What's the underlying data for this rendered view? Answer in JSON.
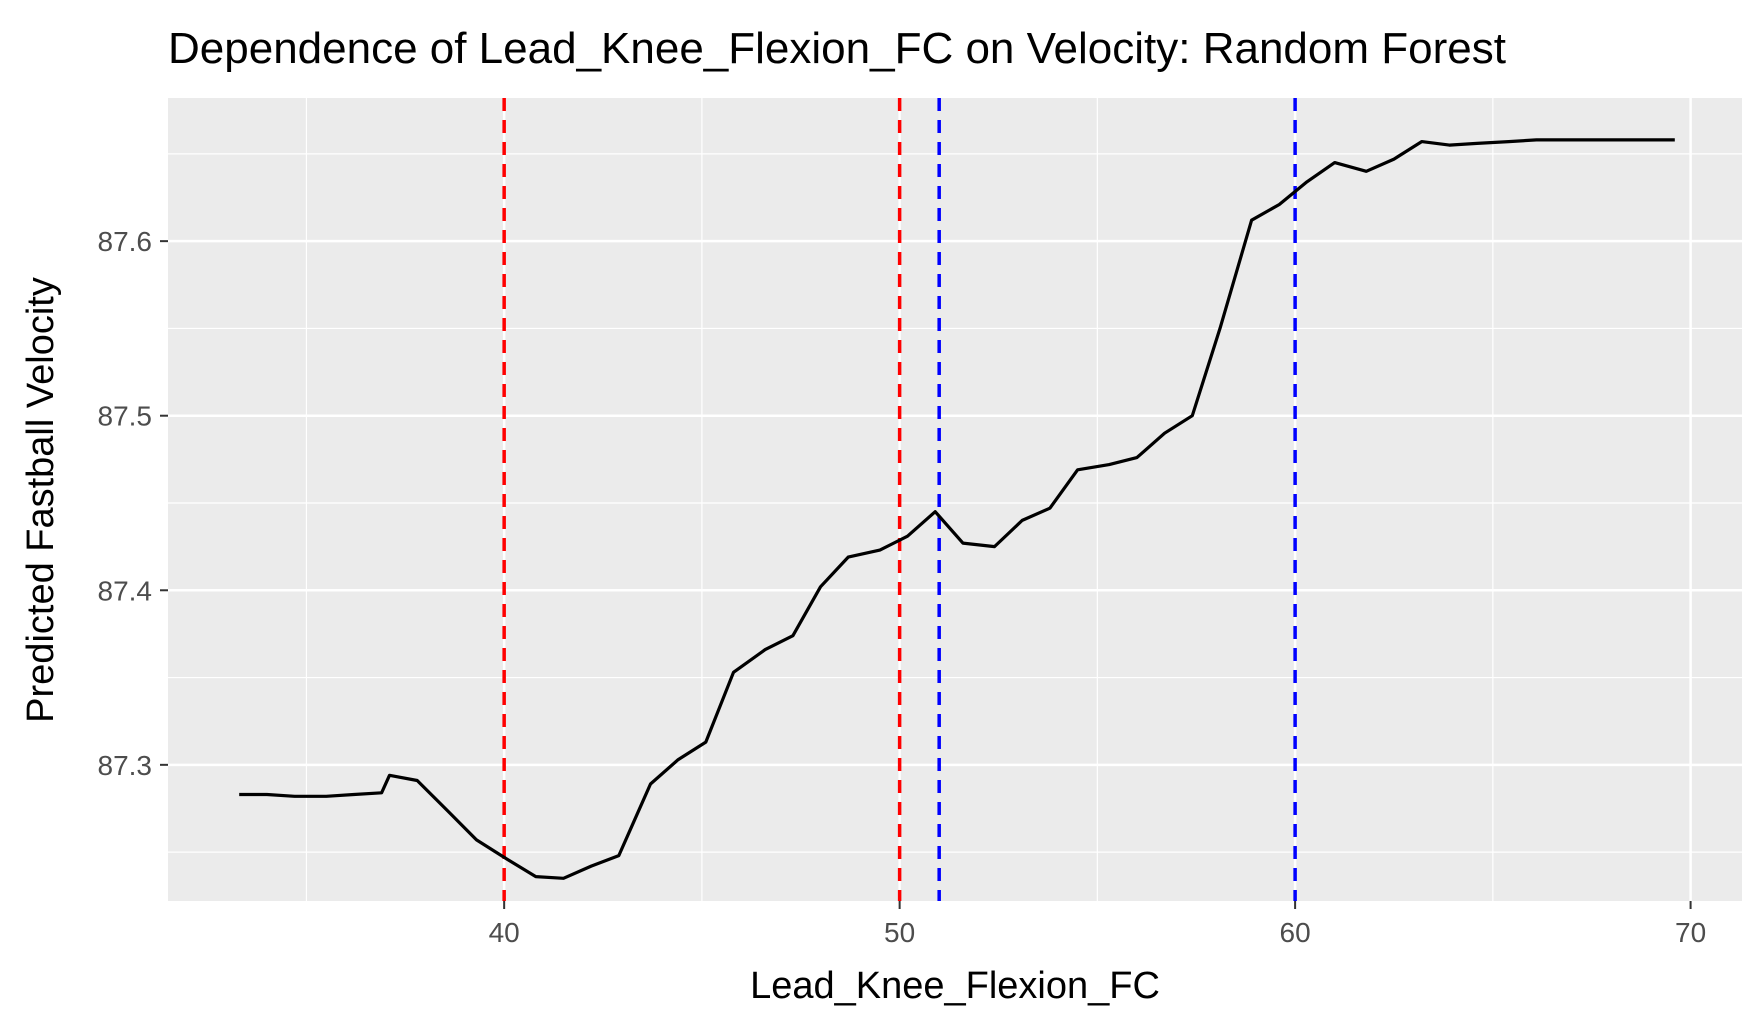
{
  "chart_data": {
    "type": "line",
    "title": "Dependence of Lead_Knee_Flexion_FC on Velocity: Random Forest",
    "xlabel": "Lead_Knee_Flexion_FC",
    "ylabel": "Predicted Fastball Velocity",
    "xlim": [
      31.5,
      71.3
    ],
    "ylim": [
      87.222,
      87.682
    ],
    "x_ticks": [
      40,
      50,
      60,
      70
    ],
    "x_tick_labels": [
      "40",
      "50",
      "60",
      "70"
    ],
    "y_ticks": [
      87.3,
      87.4,
      87.5,
      87.6
    ],
    "y_tick_labels": [
      "87.3",
      "87.4",
      "87.5",
      "87.6"
    ],
    "grid": true,
    "series": [
      {
        "color": "#000000",
        "x": [
          33.3,
          34.0,
          34.7,
          35.5,
          36.2,
          36.9,
          37.1,
          37.8,
          38.6,
          39.3,
          40.0,
          40.8,
          41.5,
          42.2,
          42.9,
          43.7,
          44.4,
          45.1,
          45.8,
          46.6,
          47.3,
          48.0,
          48.7,
          49.5,
          50.2,
          50.9,
          51.6,
          52.4,
          53.1,
          53.8,
          54.5,
          55.3,
          56.0,
          56.7,
          57.4,
          58.1,
          58.9,
          59.6,
          60.3,
          61.0,
          61.8,
          62.5,
          63.2,
          63.9,
          64.6,
          65.4,
          66.1,
          66.8,
          67.5,
          68.3,
          69.0,
          69.6
        ],
        "y": [
          87.283,
          87.283,
          87.282,
          87.282,
          87.283,
          87.284,
          87.294,
          87.291,
          87.273,
          87.257,
          87.247,
          87.236,
          87.235,
          87.242,
          87.248,
          87.289,
          87.303,
          87.313,
          87.353,
          87.366,
          87.374,
          87.402,
          87.419,
          87.423,
          87.431,
          87.445,
          87.427,
          87.425,
          87.44,
          87.447,
          87.469,
          87.472,
          87.476,
          87.49,
          87.5,
          87.55,
          87.612,
          87.621,
          87.634,
          87.645,
          87.64,
          87.647,
          87.657,
          87.655,
          87.656,
          87.657,
          87.658,
          87.658,
          87.658,
          87.658,
          87.658,
          87.658
        ]
      }
    ],
    "reference_lines": [
      {
        "x": 40,
        "color": "#ff0000",
        "style": "dashed"
      },
      {
        "x": 50,
        "color": "#ff0000",
        "style": "dashed"
      },
      {
        "x": 51,
        "color": "#0000ff",
        "style": "dashed"
      },
      {
        "x": 60,
        "color": "#0000ff",
        "style": "dashed"
      }
    ],
    "panel_background": "#ebebeb",
    "grid_color": "#ffffff"
  }
}
